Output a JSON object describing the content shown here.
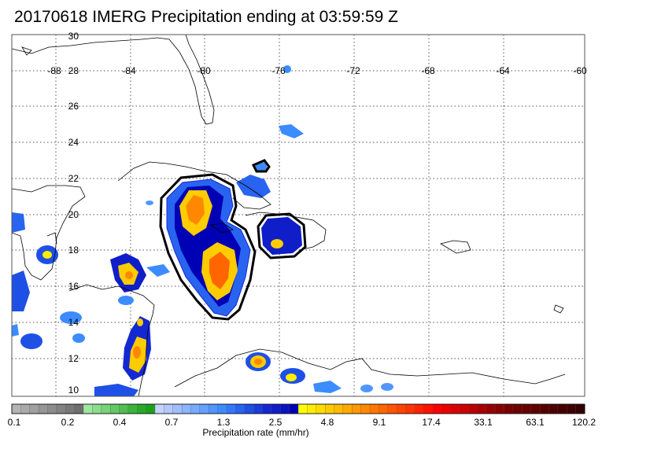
{
  "title": "20170618 IMERG Precipitation ending at 03:59:59 Z",
  "map": {
    "lon_ticks": [
      "-88",
      "-84",
      "-80",
      "-76",
      "-72",
      "-68",
      "-64",
      "-60"
    ],
    "lat_ticks": [
      "30",
      "28",
      "26",
      "24",
      "22",
      "20",
      "18",
      "16",
      "14",
      "12",
      "10"
    ]
  },
  "colorbar": {
    "label": "Precipitation rate (mm/hr)",
    "tick_labels": [
      "0.1",
      "0.2",
      "0.4",
      "0.7",
      "1.3",
      "2.5",
      "4.8",
      "9.1",
      "17.4",
      "33.1",
      "63.1",
      "120.2"
    ],
    "colors": [
      "#b4b4b4",
      "#aaaaaa",
      "#a0a0a0",
      "#969696",
      "#8c8c8c",
      "#828282",
      "#787878",
      "#6e6e6e",
      "#a0e6a0",
      "#8cdc8c",
      "#78d278",
      "#64c864",
      "#50be50",
      "#3cb43c",
      "#28aa28",
      "#1ea01e",
      "#c8d2ff",
      "#b4c8ff",
      "#a0beff",
      "#8cb4ff",
      "#78aaff",
      "#64a0ff",
      "#5096ff",
      "#3c8cff",
      "#3278ff",
      "#2864f0",
      "#1e50e6",
      "#1a3cdc",
      "#1428d2",
      "#0f1ec8",
      "#0a14be",
      "#0000b4",
      "#ffff00",
      "#ffee00",
      "#ffdd00",
      "#ffcc00",
      "#ffbb00",
      "#ffaa00",
      "#ff9900",
      "#ff8800",
      "#ff7700",
      "#ff6600",
      "#ff5500",
      "#ff4400",
      "#ff3300",
      "#ff2200",
      "#ff1100",
      "#ff0000",
      "#ee0000",
      "#dd0000",
      "#cc0000",
      "#bb0000",
      "#aa0000",
      "#990000",
      "#880000",
      "#770000",
      "#6e0000",
      "#660000",
      "#5e0000",
      "#560000",
      "#4e0000",
      "#460000",
      "#3e0000",
      "#360000"
    ]
  }
}
